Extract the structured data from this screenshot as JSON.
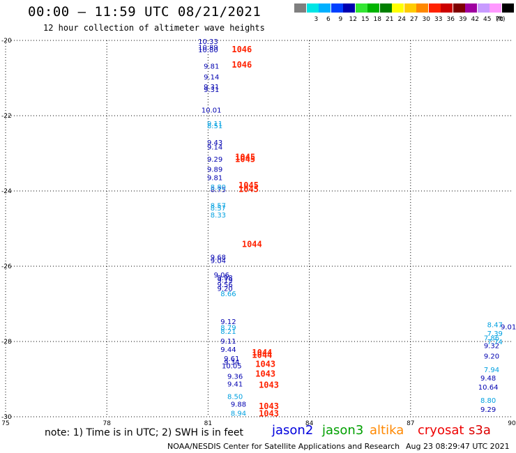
{
  "header": {
    "title": "00:00 – 11:59 UTC 08/21/2021",
    "subtitle": "12 hour collection of altimeter wave heights"
  },
  "colorbar": {
    "unit": "(ft)",
    "entries": [
      {
        "label": "",
        "color": "#7f7f7f"
      },
      {
        "label": "3",
        "color": "#00e5e5"
      },
      {
        "label": "6",
        "color": "#00b0ff"
      },
      {
        "label": "9",
        "color": "#0040ff"
      },
      {
        "label": "12",
        "color": "#0000b0"
      },
      {
        "label": "15",
        "color": "#33e633"
      },
      {
        "label": "18",
        "color": "#00b400"
      },
      {
        "label": "21",
        "color": "#007f00"
      },
      {
        "label": "24",
        "color": "#ffff00"
      },
      {
        "label": "27",
        "color": "#ffcc00"
      },
      {
        "label": "30",
        "color": "#ff8800"
      },
      {
        "label": "33",
        "color": "#ff2200"
      },
      {
        "label": "36",
        "color": "#cc0000"
      },
      {
        "label": "39",
        "color": "#7f0000"
      },
      {
        "label": "42",
        "color": "#a000a0"
      },
      {
        "label": "45",
        "color": "#c89bff"
      },
      {
        "label": "70",
        "color": "#ff99ff"
      },
      {
        "label": "",
        "color": "#000000"
      }
    ]
  },
  "chart_data": {
    "type": "scatter",
    "title": "00:00 – 11:59 UTC 08/21/2021",
    "subtitle": "12 hour collection of altimeter wave heights",
    "xlim": [
      75,
      90
    ],
    "ylim": [
      -30,
      -20
    ],
    "x_ticks": [
      "75",
      "78",
      "81",
      "84",
      "87",
      "90"
    ],
    "y_ticks": [
      "-20",
      "-22",
      "-24",
      "-26",
      "-28",
      "-30"
    ],
    "grid": true,
    "series": [
      {
        "name": "jason2",
        "color": "#0000b0",
        "points": [
          {
            "x": 81.0,
            "y": -20.02,
            "label": "10.33"
          },
          {
            "x": 81.0,
            "y": -20.18,
            "label": "10.89"
          },
          {
            "x": 81.0,
            "y": -20.24,
            "label": "10.80"
          },
          {
            "x": 81.1,
            "y": -20.68,
            "label": "9.81"
          },
          {
            "x": 81.1,
            "y": -20.96,
            "label": "9.14"
          },
          {
            "x": 81.1,
            "y": -21.22,
            "label": "9.31"
          },
          {
            "x": 81.1,
            "y": -21.3,
            "label": "9.31"
          },
          {
            "x": 81.1,
            "y": -21.84,
            "label": "10.01"
          },
          {
            "x": 81.2,
            "y": -22.7,
            "label": "9.43"
          },
          {
            "x": 81.2,
            "y": -22.82,
            "label": "9.14"
          },
          {
            "x": 81.2,
            "y": -23.15,
            "label": "9.29"
          },
          {
            "x": 81.2,
            "y": -23.42,
            "label": "9.89"
          },
          {
            "x": 81.2,
            "y": -23.64,
            "label": "9.81"
          },
          {
            "x": 81.3,
            "y": -23.95,
            "label": "8.75"
          },
          {
            "x": 81.3,
            "y": -25.75,
            "label": "9.68"
          },
          {
            "x": 81.3,
            "y": -25.84,
            "label": "9.04"
          },
          {
            "x": 81.4,
            "y": -26.22,
            "label": "9.06"
          },
          {
            "x": 81.5,
            "y": -26.3,
            "label": "9.98"
          },
          {
            "x": 81.5,
            "y": -26.36,
            "label": "9.19"
          },
          {
            "x": 81.5,
            "y": -26.48,
            "label": "9.56"
          },
          {
            "x": 81.5,
            "y": -26.58,
            "label": "9.20"
          },
          {
            "x": 81.6,
            "y": -27.46,
            "label": "9.12"
          },
          {
            "x": 81.6,
            "y": -27.98,
            "label": "9.11"
          },
          {
            "x": 81.6,
            "y": -28.2,
            "label": "9.44"
          },
          {
            "x": 81.7,
            "y": -28.44,
            "label": "9.61"
          },
          {
            "x": 81.7,
            "y": -28.54,
            "label": "9.34"
          },
          {
            "x": 81.7,
            "y": -28.64,
            "label": "10.05"
          },
          {
            "x": 81.8,
            "y": -28.92,
            "label": "9.36"
          },
          {
            "x": 81.8,
            "y": -29.12,
            "label": "9.41"
          },
          {
            "x": 81.9,
            "y": -29.66,
            "label": "9.88"
          },
          {
            "x": 89.4,
            "y": -28.1,
            "label": "9.32"
          },
          {
            "x": 89.4,
            "y": -28.38,
            "label": "9.20"
          },
          {
            "x": 89.3,
            "y": -28.96,
            "label": "9.48"
          },
          {
            "x": 89.3,
            "y": -29.2,
            "label": "10.64"
          },
          {
            "x": 89.3,
            "y": -29.8,
            "label": "9.29"
          },
          {
            "x": 89.9,
            "y": -27.6,
            "label": "9.01"
          }
        ]
      },
      {
        "name": "jason3",
        "color": "#00b000",
        "points": []
      },
      {
        "name": "saral/altika",
        "color": "#ff8800",
        "points": []
      },
      {
        "name": "cryosat",
        "color": "#ff2200",
        "points": [
          {
            "x": 82.0,
            "y": -20.24,
            "label": "1046"
          },
          {
            "x": 82.0,
            "y": -20.65,
            "label": "1046"
          },
          {
            "x": 82.1,
            "y": -23.1,
            "label": "1045"
          },
          {
            "x": 82.1,
            "y": -23.16,
            "label": "1045"
          },
          {
            "x": 82.2,
            "y": -23.85,
            "label": "1045"
          },
          {
            "x": 82.2,
            "y": -23.95,
            "label": "1045"
          },
          {
            "x": 82.3,
            "y": -25.42,
            "label": "1044"
          },
          {
            "x": 82.6,
            "y": -28.3,
            "label": "1044"
          },
          {
            "x": 82.6,
            "y": -28.36,
            "label": "1044"
          },
          {
            "x": 82.7,
            "y": -28.6,
            "label": "1043"
          },
          {
            "x": 82.7,
            "y": -28.86,
            "label": "1043"
          },
          {
            "x": 82.8,
            "y": -29.16,
            "label": "1043"
          },
          {
            "x": 82.8,
            "y": -29.72,
            "label": "1043"
          },
          {
            "x": 82.8,
            "y": -29.92,
            "label": "1043"
          }
        ]
      },
      {
        "name": "s3a",
        "color": "#00a0e0",
        "points": [
          {
            "x": 81.2,
            "y": -22.2,
            "label": "9.11"
          },
          {
            "x": 81.2,
            "y": -22.26,
            "label": "8.51"
          },
          {
            "x": 81.3,
            "y": -23.89,
            "label": "8.80"
          },
          {
            "x": 81.3,
            "y": -24.38,
            "label": "8.57"
          },
          {
            "x": 81.3,
            "y": -24.44,
            "label": "8.57"
          },
          {
            "x": 81.3,
            "y": -24.63,
            "label": "8.33"
          },
          {
            "x": 81.6,
            "y": -26.72,
            "label": "8.66"
          },
          {
            "x": 81.6,
            "y": -27.62,
            "label": "8.79"
          },
          {
            "x": 81.6,
            "y": -27.72,
            "label": "8.21"
          },
          {
            "x": 81.8,
            "y": -29.45,
            "label": "8.50"
          },
          {
            "x": 81.9,
            "y": -29.9,
            "label": "8.94"
          },
          {
            "x": 89.4,
            "y": -27.9,
            "label": "7.86"
          },
          {
            "x": 89.5,
            "y": -27.55,
            "label": "8.47"
          },
          {
            "x": 89.5,
            "y": -27.78,
            "label": "7.39"
          },
          {
            "x": 89.5,
            "y": -28.0,
            "label": "7.74"
          },
          {
            "x": 89.4,
            "y": -28.74,
            "label": "7.94"
          },
          {
            "x": 89.3,
            "y": -29.56,
            "label": "8.80"
          }
        ]
      }
    ]
  },
  "legend": [
    {
      "name": "jason2",
      "color": "#0000dd"
    },
    {
      "name": "jason3",
      "color": "#00a000"
    },
    {
      "name": "altika",
      "color": "#ff8800"
    },
    {
      "name": "cryosat",
      "color": "#ee0000"
    },
    {
      "name": "s3a",
      "color": "#dd0000"
    }
  ],
  "footer": {
    "note": "note: 1) Time is in UTC; 2) SWH is in feet",
    "credit": "NOAA/NESDIS Center for Satellite Applications and Research",
    "timestamp": "Aug 23 08:29:47 UTC 2021"
  }
}
